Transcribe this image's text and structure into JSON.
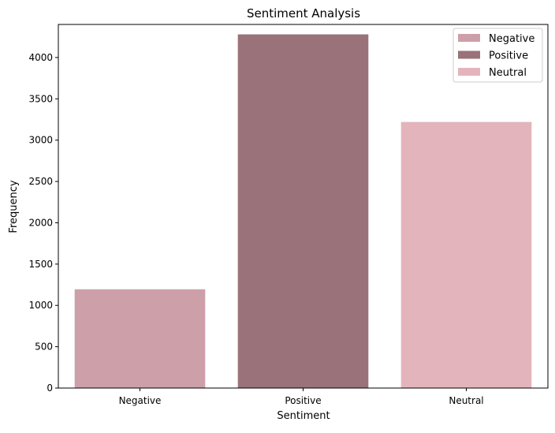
{
  "chart_data": {
    "type": "bar",
    "title": "Sentiment Analysis",
    "xlabel": "Sentiment",
    "ylabel": "Frequency",
    "categories": [
      "Negative",
      "Positive",
      "Neutral"
    ],
    "values": [
      1195,
      4280,
      3220
    ],
    "colors": [
      "#cda0a9",
      "#9a7279",
      "#e4b4bc"
    ],
    "ylim": [
      0,
      4400
    ],
    "yticks": [
      0,
      500,
      1000,
      1500,
      2000,
      2500,
      3000,
      3500,
      4000
    ],
    "legend": {
      "position": "top-right",
      "entries": [
        "Negative",
        "Positive",
        "Neutral"
      ]
    },
    "grid": false
  }
}
